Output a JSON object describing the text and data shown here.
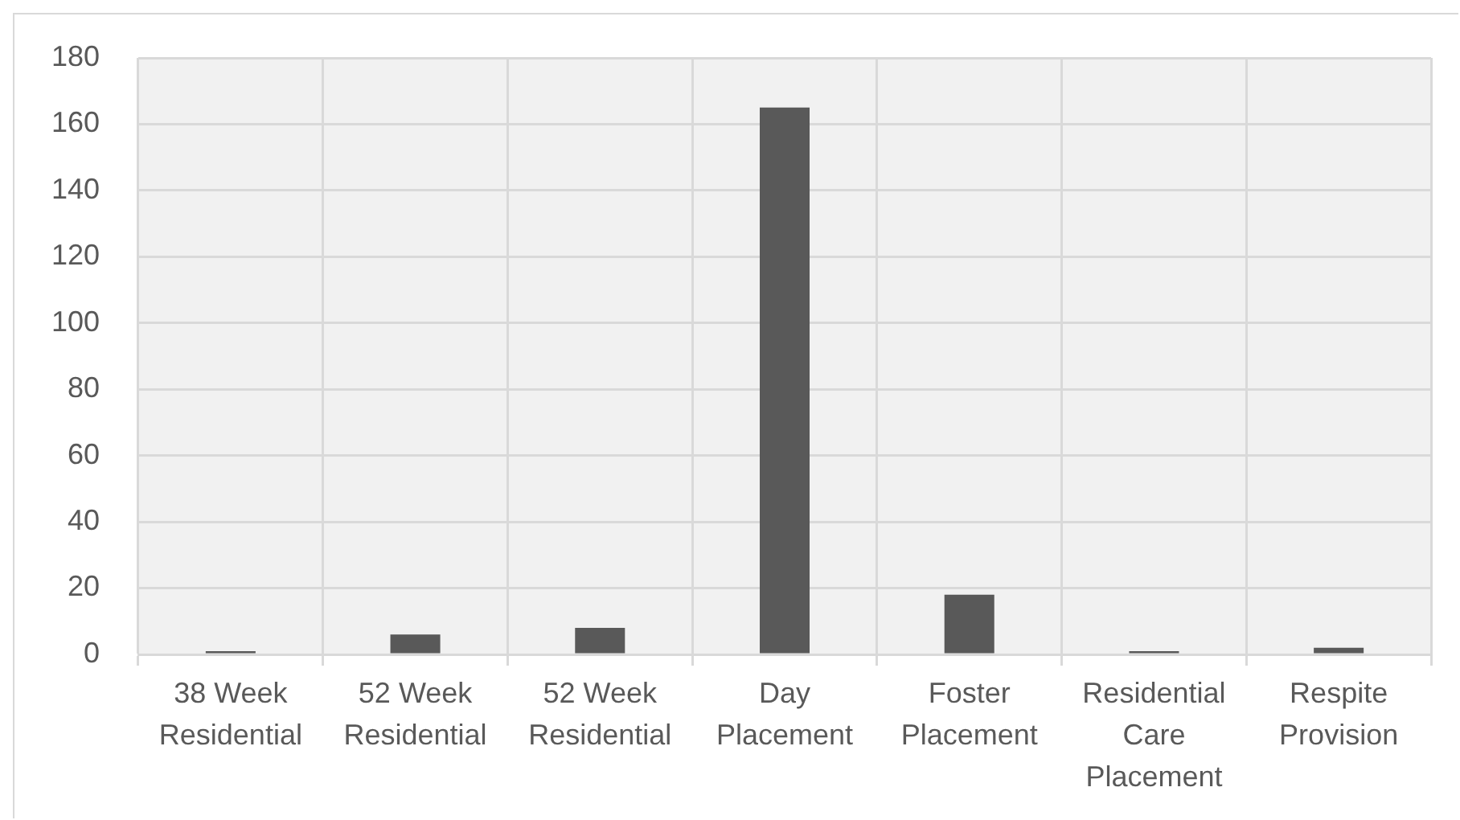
{
  "chart_data": {
    "type": "bar",
    "categories": [
      "38 Week Residential",
      "52 Week Residential",
      "52 Week Residential",
      "Day Placement",
      "Foster Placement",
      "Residential Care Placement",
      "Respite Provision"
    ],
    "values": [
      1,
      6,
      8,
      165,
      18,
      1,
      2
    ],
    "color": "#595959",
    "ylim": [
      0,
      180
    ],
    "yticks": [
      0,
      20,
      40,
      60,
      80,
      100,
      120,
      140,
      160,
      180
    ],
    "grid": true
  }
}
